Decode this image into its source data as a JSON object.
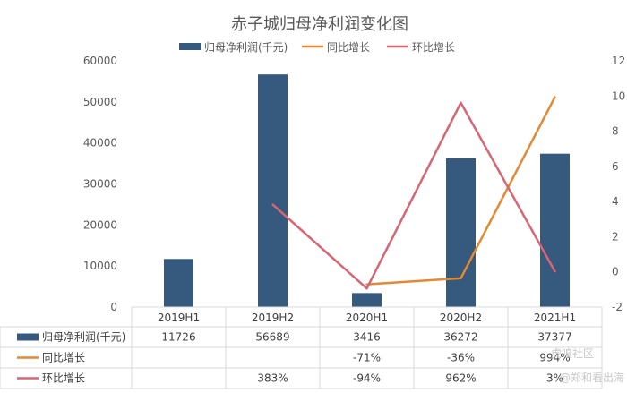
{
  "chart_data": {
    "type": "bar",
    "title": "赤子城归母净利润变化图",
    "categories": [
      "2019H1",
      "2019H2",
      "2020H1",
      "2020H2",
      "2021H1"
    ],
    "y_left": {
      "ticks": [
        "0",
        "10000",
        "20000",
        "30000",
        "40000",
        "50000",
        "60000"
      ],
      "lim": [
        0,
        60000
      ]
    },
    "y_right": {
      "ticks": [
        "-2",
        "0",
        "2",
        "4",
        "6",
        "8",
        "10",
        "12"
      ],
      "lim": [
        -2,
        12
      ]
    },
    "legend_position": "top",
    "grid": false,
    "series": [
      {
        "name": "归母净利润(千元)",
        "kind": "bar",
        "axis": "left",
        "color": "#365A7D",
        "values": [
          11726,
          56689,
          3416,
          36272,
          37377
        ],
        "labels": [
          "11726",
          "56689",
          "3416",
          "36272",
          "37377"
        ]
      },
      {
        "name": "同比增长",
        "kind": "line",
        "axis": "right",
        "color": "#E38833",
        "values": [
          null,
          null,
          -0.71,
          -0.36,
          9.94
        ],
        "labels": [
          "",
          "",
          "-71%",
          "-36%",
          "994%"
        ]
      },
      {
        "name": "环比增长",
        "kind": "line",
        "axis": "right",
        "color": "#D86573",
        "values": [
          null,
          3.83,
          -0.94,
          9.62,
          0.03
        ],
        "labels": [
          "",
          "383%",
          "-94%",
          "962%",
          "3%"
        ]
      }
    ]
  },
  "watermark": {
    "line1": "虎嗅社区",
    "line2": "@郑和看出海"
  }
}
